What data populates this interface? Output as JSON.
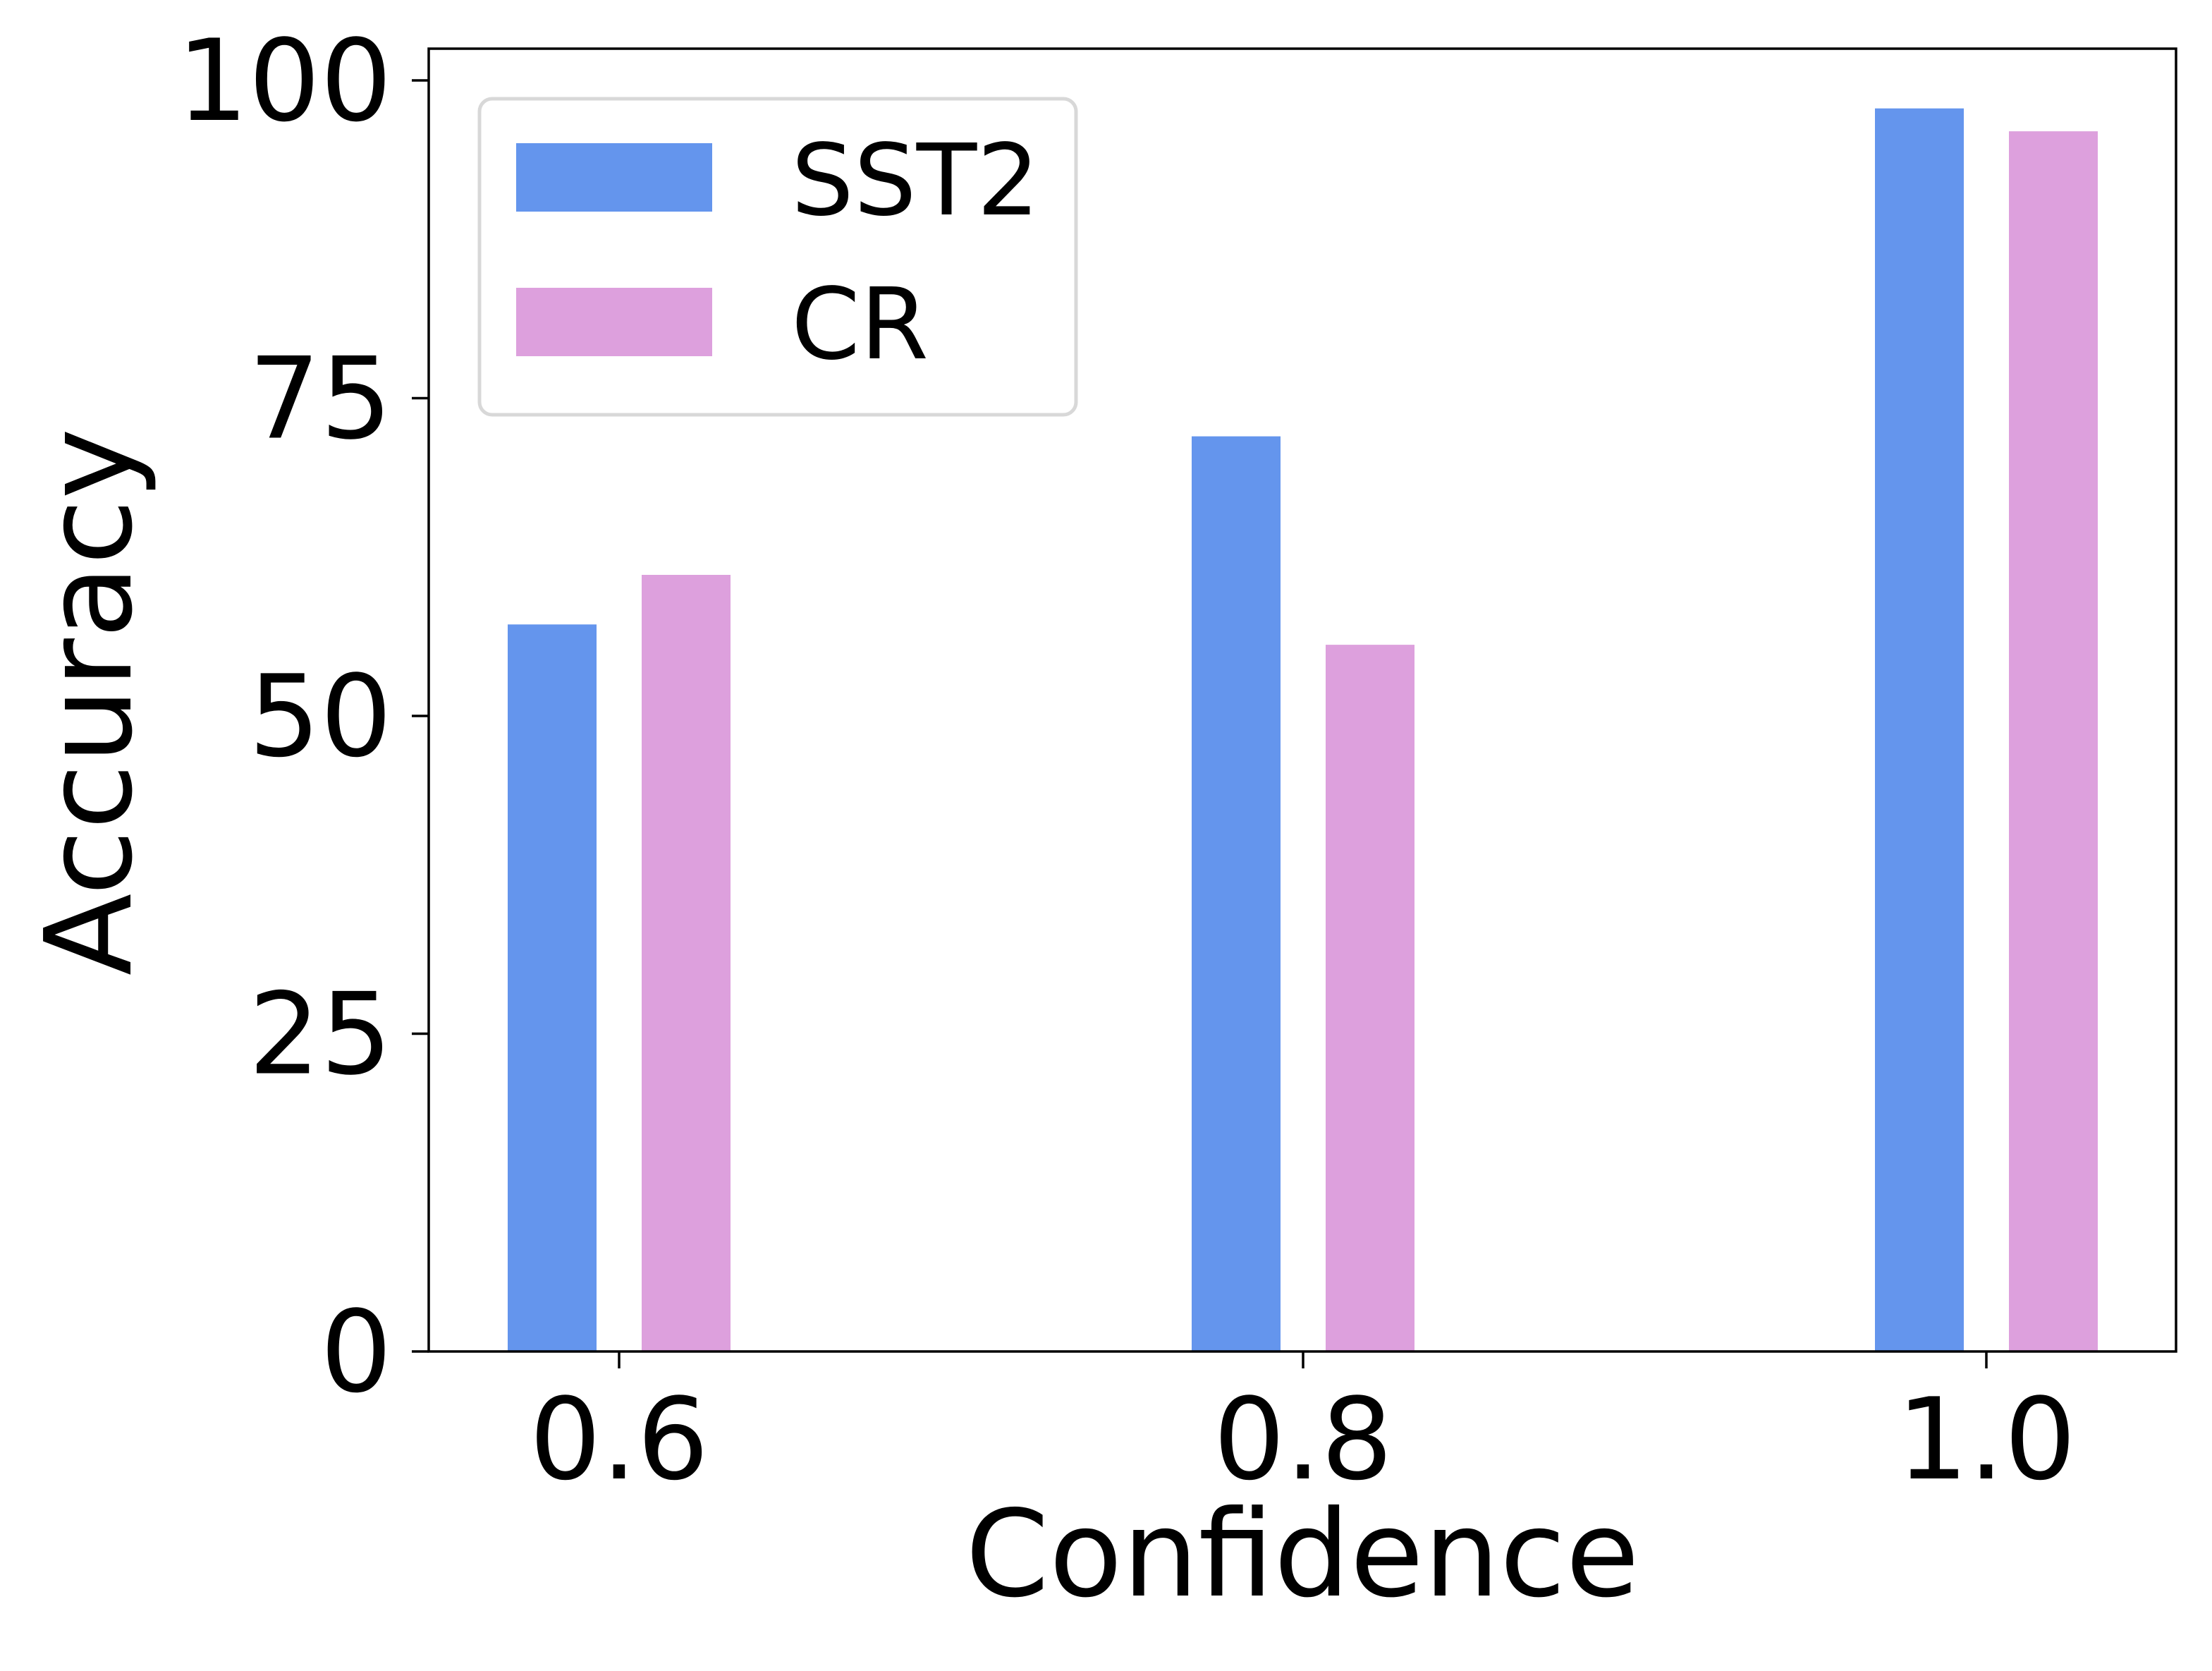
{
  "chart_data": {
    "type": "bar",
    "title": "",
    "xlabel": "Confidence",
    "ylabel": "Accuracy",
    "categories": [
      "0.6",
      "0.8",
      "1.0"
    ],
    "yticks": [
      "0",
      "25",
      "50",
      "75",
      "100"
    ],
    "ylim": [
      0,
      102.5
    ],
    "grid": false,
    "legend_position": "top-left",
    "series": [
      {
        "name": "SST2",
        "color": "#6495ED",
        "values": [
          57.2,
          72.0,
          97.8
        ]
      },
      {
        "name": "CR",
        "color": "#DDA0DD",
        "values": [
          61.1,
          55.6,
          96.0
        ]
      }
    ]
  }
}
